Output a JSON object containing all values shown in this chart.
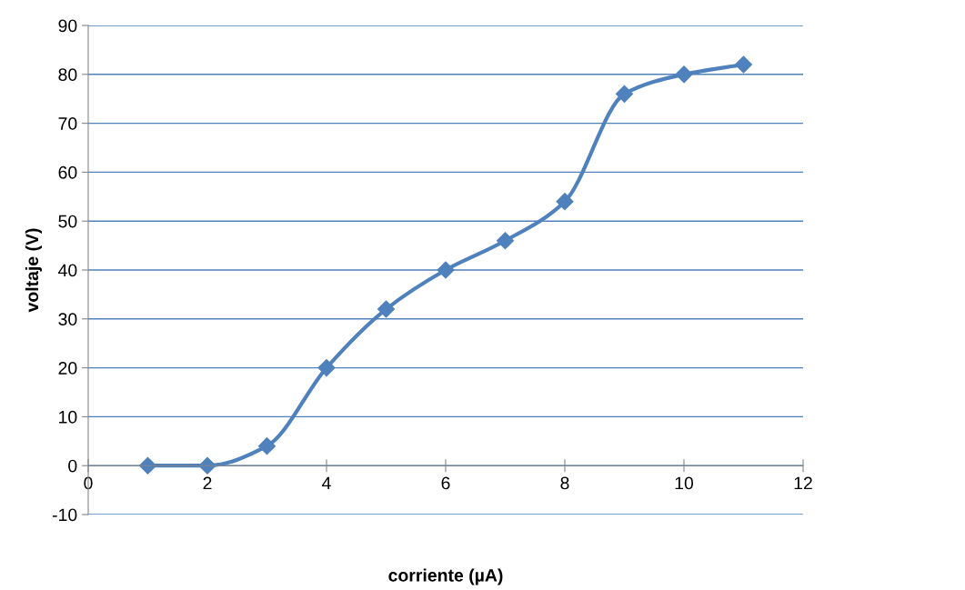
{
  "chart_data": {
    "type": "line",
    "xlabel": "corriente (µA)",
    "ylabel": "voltaje (V)",
    "x": [
      1,
      2,
      3,
      4,
      5,
      6,
      7,
      8,
      9,
      10,
      11
    ],
    "series": [
      {
        "color": "#4f81bd",
        "values": [
          0,
          0,
          4,
          20,
          32,
          40,
          46,
          54,
          76,
          80,
          82
        ]
      }
    ],
    "xlim": [
      0,
      12
    ],
    "xticks": [
      0,
      2,
      4,
      6,
      8,
      10,
      12
    ],
    "ylim": [
      -10,
      90
    ],
    "yticks": [
      -10,
      0,
      10,
      20,
      30,
      40,
      50,
      60,
      70,
      80,
      90
    ],
    "grid": "y",
    "marker": "diamond",
    "line_style": "solid",
    "legend": false
  }
}
